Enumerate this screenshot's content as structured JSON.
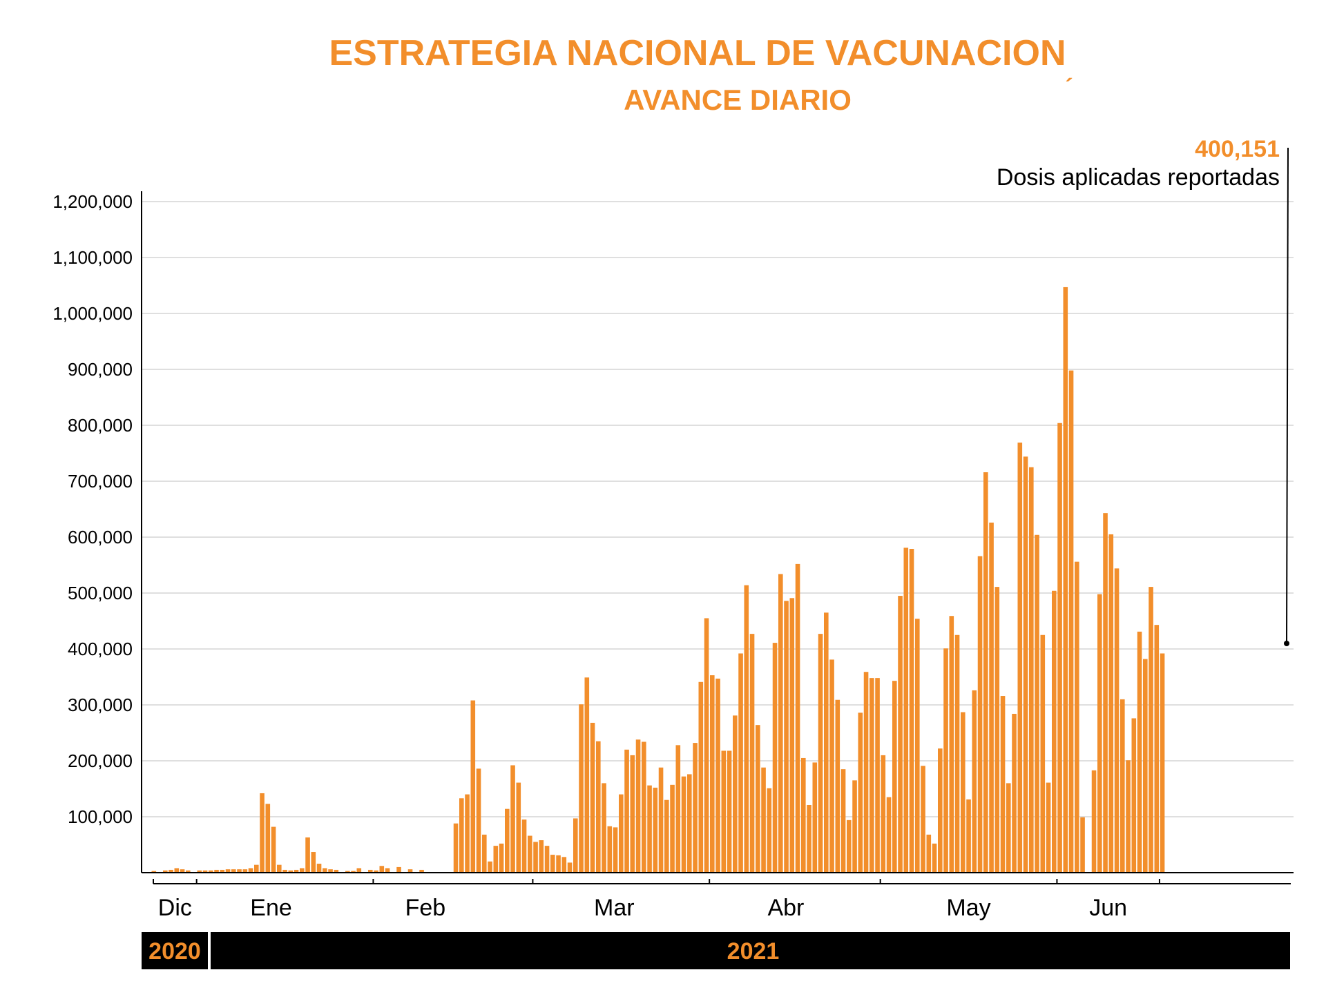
{
  "title": "ESTRATEGIA NACIONAL DE VACUNACION",
  "title_accent": "´",
  "subtitle": "AVANCE DIARIO",
  "annotation": {
    "value": "400,151",
    "label": "Dosis aplicadas reportadas"
  },
  "colors": {
    "bar": "#f28e2b",
    "title": "#f28e2b",
    "grid": "#cccccc",
    "axis": "#000000",
    "year_band": "#000000",
    "year_text": "#f28e2b"
  },
  "chart_data": {
    "type": "bar",
    "title": "ESTRATEGIA NACIONAL DE VACUNACION",
    "subtitle": "AVANCE DIARIO",
    "xlabel": "",
    "ylabel": "",
    "ylim": [
      0,
      1200000
    ],
    "yticks": [
      100000,
      200000,
      300000,
      400000,
      500000,
      600000,
      700000,
      800000,
      900000,
      1000000,
      1100000,
      1200000
    ],
    "ytick_labels": [
      "100,000",
      "200,000",
      "300,000",
      "400,000",
      "500,000",
      "600,000",
      "700,000",
      "800,000",
      "900,000",
      "1,000,000",
      "1,100,000",
      "1,200,000"
    ],
    "grid": true,
    "months": [
      {
        "label": "Dic",
        "start": 0,
        "end": 8
      },
      {
        "label": "Ene",
        "start": 8,
        "end": 39
      },
      {
        "label": "Feb",
        "start": 39,
        "end": 67
      },
      {
        "label": "Mar",
        "start": 67,
        "end": 98
      },
      {
        "label": "Abr",
        "start": 98,
        "end": 128
      },
      {
        "label": "May",
        "start": 128,
        "end": 159
      },
      {
        "label": "Jun",
        "start": 159,
        "end": 177
      }
    ],
    "years": [
      {
        "label": "2020",
        "start": 0,
        "end": 8
      },
      {
        "label": "2021",
        "start": 8,
        "end": 177
      }
    ],
    "values": [
      3000,
      0,
      4000,
      5000,
      8000,
      6000,
      4000,
      0,
      4000,
      4000,
      4000,
      5000,
      5000,
      6000,
      6000,
      6000,
      6000,
      8000,
      14000,
      142000,
      123000,
      82000,
      14000,
      5000,
      4000,
      5000,
      8000,
      63000,
      37000,
      16000,
      8000,
      6000,
      5000,
      0,
      3000,
      3000,
      8000,
      0,
      5000,
      4000,
      12000,
      8000,
      0,
      10000,
      0,
      6000,
      0,
      5000,
      0,
      0,
      0,
      0,
      0,
      88000,
      133000,
      140000,
      308000,
      186000,
      68000,
      20000,
      48000,
      52000,
      114000,
      192000,
      161000,
      95000,
      66000,
      55000,
      58000,
      48000,
      32000,
      31000,
      28000,
      18000,
      97000,
      301000,
      349000,
      268000,
      235000,
      160000,
      83000,
      81000,
      140000,
      220000,
      210000,
      238000,
      234000,
      156000,
      152000,
      188000,
      130000,
      157000,
      228000,
      172000,
      176000,
      232000,
      341000,
      455000,
      353000,
      347000,
      218000,
      218000,
      281000,
      392000,
      514000,
      427000,
      264000,
      188000,
      151000,
      411000,
      534000,
      486000,
      491000,
      552000,
      205000,
      121000,
      197000,
      427000,
      465000,
      381000,
      309000,
      185000,
      94000,
      165000,
      286000,
      359000,
      348000,
      348000,
      210000,
      135000,
      343000,
      495000,
      581000,
      579000,
      454000,
      191000,
      68000,
      52000,
      222000,
      401000,
      459000,
      425000,
      287000,
      131000,
      326000,
      566000,
      716000,
      626000,
      511000,
      316000,
      160000,
      284000,
      769000,
      744000,
      725000,
      604000,
      425000,
      161000,
      504000,
      804000,
      1047000,
      898000,
      556000,
      99000,
      0,
      183000,
      498000,
      643000,
      605000,
      544000,
      310000,
      201000,
      276000,
      431000,
      382000,
      511000,
      443000,
      392000
    ]
  }
}
